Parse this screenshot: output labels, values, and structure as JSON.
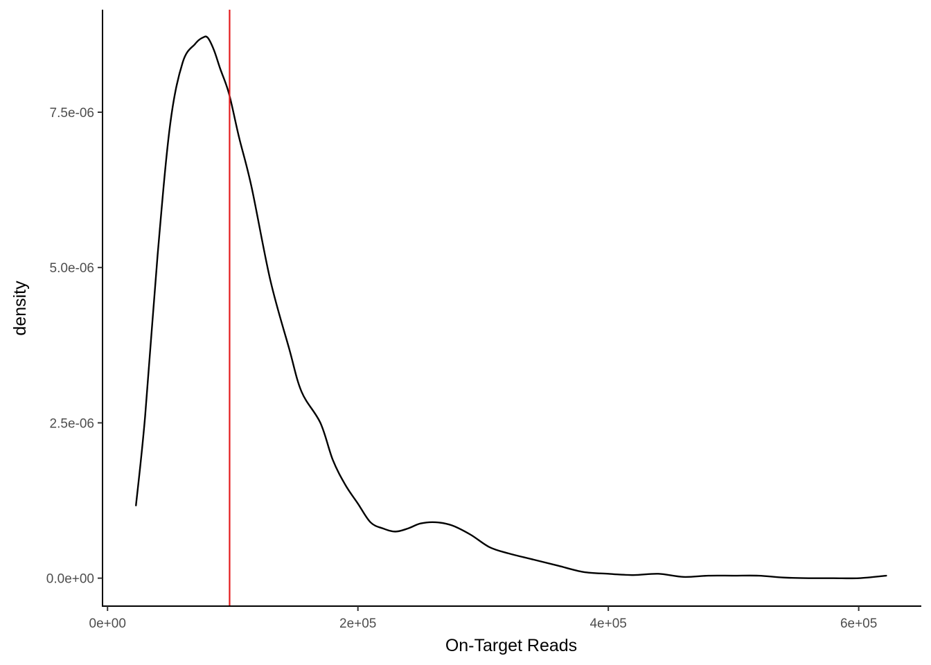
{
  "chart_data": {
    "type": "line",
    "title": "",
    "xlabel": "On-Target Reads",
    "ylabel": "density",
    "xlim": [
      -4000,
      650000
    ],
    "ylim": [
      -4.5e-07,
      9.15e-06
    ],
    "x_ticks": [
      0,
      200000,
      400000,
      600000
    ],
    "x_tick_labels": [
      "0e+00",
      "2e+05",
      "4e+05",
      "6e+05"
    ],
    "y_ticks": [
      0,
      2.5e-06,
      5e-06,
      7.5e-06
    ],
    "y_tick_labels": [
      "0.0e+00",
      "2.5e-06",
      "5.0e-06",
      "7.5e-06"
    ],
    "grid": false,
    "vline": {
      "x": 97500,
      "color": "#e31a1c"
    },
    "series": [
      {
        "color": "#000000",
        "x": [
          22700,
          30000,
          40000,
          50000,
          60000,
          70000,
          76000,
          80000,
          85000,
          90000,
          97000,
          105000,
          115000,
          130000,
          145000,
          155000,
          170000,
          180000,
          190000,
          200000,
          210000,
          220000,
          230000,
          240000,
          250000,
          262000,
          275000,
          290000,
          305000,
          320000,
          340000,
          360000,
          380000,
          400000,
          420000,
          440000,
          460000,
          480000,
          500000,
          520000,
          540000,
          560000,
          580000,
          600000,
          622000
        ],
        "y": [
          1.17e-06,
          2.6e-06,
          5.2e-06,
          7.3e-06,
          8.3e-06,
          8.6e-06,
          8.7e-06,
          8.7e-06,
          8.5e-06,
          8.2e-06,
          7.8e-06,
          7.1e-06,
          6.3e-06,
          4.8e-06,
          3.7e-06,
          3e-06,
          2.5e-06,
          1.9e-06,
          1.5e-06,
          1.2e-06,
          9e-07,
          8e-07,
          7.5e-07,
          8e-07,
          8.8e-07,
          9e-07,
          8.5e-07,
          7e-07,
          5e-07,
          4e-07,
          3e-07,
          2e-07,
          1e-07,
          7e-08,
          5e-08,
          7e-08,
          2e-08,
          4e-08,
          4e-08,
          4e-08,
          1e-08,
          0.0,
          0.0,
          0.0,
          4e-08
        ]
      }
    ]
  }
}
